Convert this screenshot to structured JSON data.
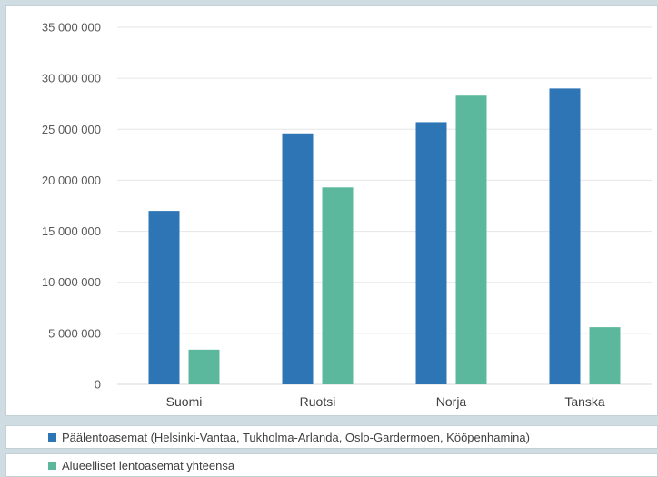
{
  "chart_data": {
    "type": "bar",
    "categories": [
      "Suomi",
      "Ruotsi",
      "Norja",
      "Tanska"
    ],
    "series": [
      {
        "name": "Päälentoasemat (Helsinki-Vantaa, Tukholma-Arlanda, Oslo-Gardermoen, Kööpenhamina)",
        "color": "#2e75b6",
        "values": [
          17000000,
          24600000,
          25700000,
          29000000
        ]
      },
      {
        "name": "Alueelliset lentoasemat yhteensä",
        "color": "#5cb89c",
        "values": [
          3400000,
          19300000,
          28300000,
          5600000
        ]
      }
    ],
    "yticks": [
      "35 000 000",
      "30 000 000",
      "25 000 000",
      "20 000 000",
      "15 000 000",
      "10 000 000",
      "5 000 000",
      "0"
    ],
    "ylim": [
      0,
      35000000
    ],
    "grid": true,
    "legend_position": "bottom"
  }
}
